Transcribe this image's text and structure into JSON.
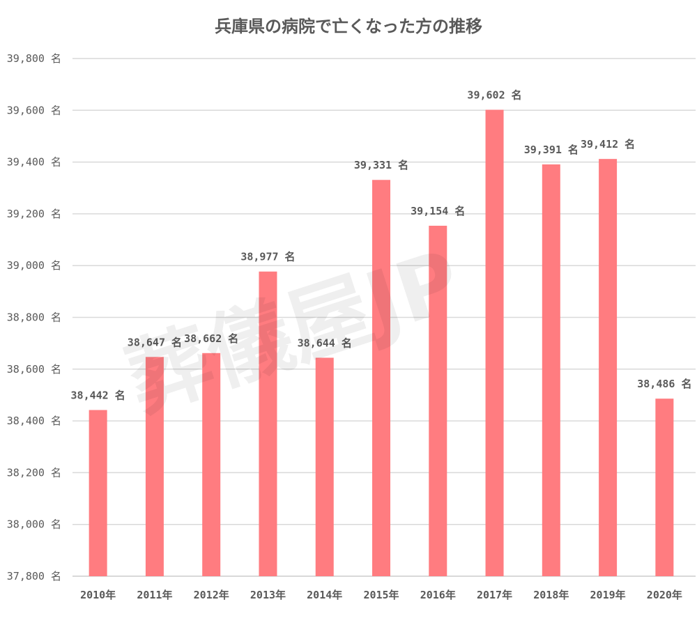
{
  "chart_data": {
    "type": "bar",
    "title": "兵庫県の病院で亡くなった方の推移",
    "categories": [
      "2010年",
      "2011年",
      "2012年",
      "2013年",
      "2014年",
      "2015年",
      "2016年",
      "2017年",
      "2018年",
      "2019年",
      "2020年"
    ],
    "values": [
      38442,
      38647,
      38662,
      38977,
      38644,
      39331,
      39154,
      39602,
      39391,
      39412,
      38486
    ],
    "unit": "名",
    "xlabel": "",
    "ylabel": "",
    "ylim": [
      37800,
      39800
    ],
    "yticks": [
      37800,
      38000,
      38200,
      38400,
      38600,
      38800,
      39000,
      39200,
      39400,
      39600,
      39800
    ],
    "grid": true,
    "legend": "none",
    "bar_color": "#ff7c80",
    "watermark": "葬儀屋JP"
  }
}
